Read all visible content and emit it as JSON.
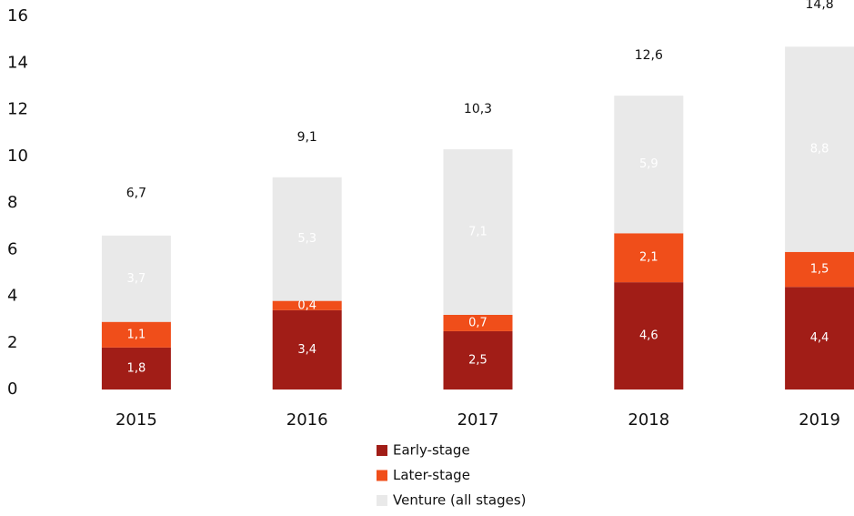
{
  "chart_data": {
    "type": "stacked_bar",
    "categories": [
      "2015",
      "2016",
      "2017",
      "2018",
      "2019"
    ],
    "series": [
      {
        "name": "Early-stage",
        "color": "#a11d17",
        "values": [
          1.8,
          3.4,
          2.5,
          4.6,
          4.4
        ],
        "value_labels": [
          "1,8",
          "3,4",
          "2,5",
          "4,6",
          "4,4"
        ]
      },
      {
        "name": "Later-stage",
        "color": "#f04e1a",
        "values": [
          1.1,
          0.4,
          0.7,
          2.1,
          1.5
        ],
        "value_labels": [
          "1,1",
          "0,4",
          "0,7",
          "2,1",
          "1,5"
        ]
      },
      {
        "name": "Venture (all stages)",
        "color": "#e9e9e9",
        "values": [
          3.7,
          5.3,
          7.1,
          5.9,
          8.8
        ],
        "value_labels": [
          "3,7",
          "5,3",
          "7,1",
          "5,9",
          "8,8"
        ]
      }
    ],
    "totals": [
      6.7,
      9.1,
      10.3,
      12.6,
      14.8
    ],
    "total_labels": [
      "6,7",
      "9,1",
      "10,3",
      "12,6",
      "14,8"
    ],
    "ylim": [
      0,
      16
    ],
    "yticks": [
      0,
      2,
      4,
      6,
      8,
      10,
      12,
      14,
      16
    ],
    "grid": false,
    "legend": "bottom"
  }
}
